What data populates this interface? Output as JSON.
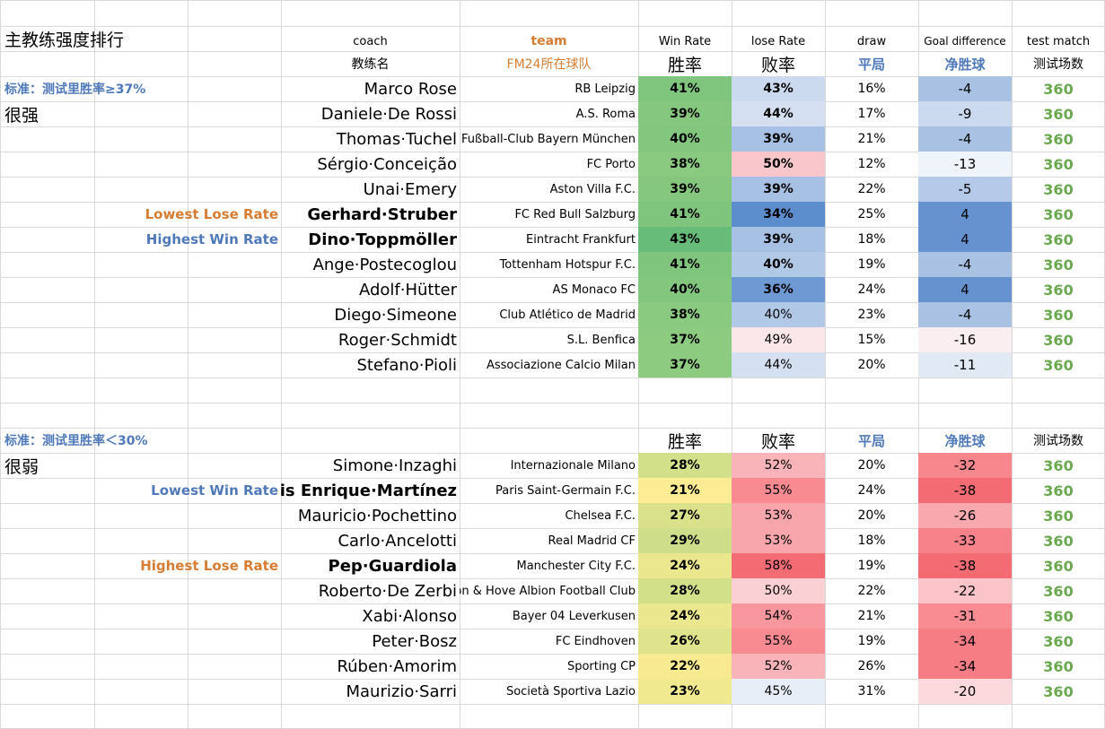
{
  "page_title": "主教练强度排行",
  "headers": {
    "coach_en": "coach",
    "team_en": "team",
    "win_en": "Win Rate",
    "lose_en": "lose Rate",
    "draw_en": "draw",
    "gd_en": "Goal difference",
    "test_en": "test match",
    "coach_cn": "教练名",
    "team_cn": "FM24所在球队",
    "win_cn": "胜率",
    "lose_cn": "败率",
    "draw_cn": "平局",
    "gd_cn": "净胜球",
    "test_cn": "测试场数"
  },
  "colors": {
    "orange": "#d67c33",
    "blue": "#4f79b8",
    "green_text": "#6aa84f"
  },
  "strong": {
    "criterion": "标准：测试里胜率≥37%",
    "label": "很强",
    "rows": [
      {
        "tag": "",
        "tag_color": "",
        "coach": "Marco Rose",
        "bold": false,
        "team": "RB Leipzig",
        "win": "41%",
        "lose": "43%",
        "draw": "16%",
        "gd": "-4",
        "test": "360",
        "win_bg": "#80c57e",
        "lose_bg": "#ccdaef",
        "gd_bg": "#a9c2e4"
      },
      {
        "tag": "",
        "tag_color": "",
        "coach": "Daniele·De Rossi",
        "bold": false,
        "team": "A.S. Roma",
        "win": "39%",
        "lose": "44%",
        "draw": "17%",
        "gd": "-9",
        "test": "360",
        "win_bg": "#86c77f",
        "lose_bg": "#d4e0f1",
        "gd_bg": "#ccdaef"
      },
      {
        "tag": "",
        "tag_color": "",
        "coach": "Thomas·Tuchel",
        "bold": false,
        "team": "Fußball-Club Bayern München",
        "win": "40%",
        "lose": "39%",
        "draw": "21%",
        "gd": "-4",
        "test": "360",
        "win_bg": "#83c67e",
        "lose_bg": "#a7c1e4",
        "gd_bg": "#a9c2e4"
      },
      {
        "tag": "",
        "tag_color": "",
        "coach": "Sérgio·Conceição",
        "bold": false,
        "team": "FC Porto",
        "win": "38%",
        "lose": "50%",
        "draw": "12%",
        "gd": "-13",
        "test": "360",
        "win_bg": "#8aca80",
        "lose_bg": "#f9c7cb",
        "gd_bg": "#eff3fa"
      },
      {
        "tag": "",
        "tag_color": "",
        "coach": "Unai·Emery",
        "bold": false,
        "team": "Aston Villa F.C.",
        "win": "39%",
        "lose": "39%",
        "draw": "22%",
        "gd": "-5",
        "test": "360",
        "win_bg": "#86c77f",
        "lose_bg": "#a7c1e4",
        "gd_bg": "#b4cae8"
      },
      {
        "tag": "Lowest Lose Rate",
        "tag_color": "#d67c33",
        "coach": "Gerhard·Struber",
        "bold": true,
        "team": "FC Red Bull Salzburg",
        "win": "41%",
        "lose": "34%",
        "draw": "25%",
        "gd": "4",
        "test": "360",
        "win_bg": "#80c57e",
        "lose_bg": "#5c8dcd",
        "gd_bg": "#6693cf"
      },
      {
        "tag": "Highest Win Rate",
        "tag_color": "#4f79b8",
        "coach": "Dino·Toppmöller",
        "bold": true,
        "team": "Eintracht Frankfurt",
        "win": "43%",
        "lose": "39%",
        "draw": "18%",
        "gd": "4",
        "test": "360",
        "win_bg": "#66bc78",
        "lose_bg": "#a7c1e4",
        "gd_bg": "#6693cf"
      },
      {
        "tag": "",
        "tag_color": "",
        "coach": "Ange·Postecoglou",
        "bold": false,
        "team": "Tottenham Hotspur F.C.",
        "win": "41%",
        "lose": "40%",
        "draw": "19%",
        "gd": "-4",
        "test": "360",
        "win_bg": "#80c57e",
        "lose_bg": "#b1c8e7",
        "gd_bg": "#a9c2e4"
      },
      {
        "tag": "",
        "tag_color": "",
        "coach": "Adolf·Hütter",
        "bold": false,
        "team": "AS Monaco FC",
        "win": "40%",
        "lose": "36%",
        "draw": "24%",
        "gd": "4",
        "test": "360",
        "win_bg": "#83c67e",
        "lose_bg": "#6f99d2",
        "gd_bg": "#6693cf"
      },
      {
        "tag": "",
        "tag_color": "",
        "coach": "Diego·Simeone",
        "bold": false,
        "team": "Club Atlético de Madrid",
        "win": "38%",
        "lose": "40%",
        "draw": "23%",
        "gd": "-4",
        "test": "360",
        "win_bg": "#8aca80",
        "lose_bg": "#b1c8e7",
        "gd_bg": "#a9c2e4"
      },
      {
        "tag": "",
        "tag_color": "",
        "coach": "Roger·Schmidt",
        "bold": false,
        "team": "S.L. Benfica",
        "win": "37%",
        "lose": "49%",
        "draw": "15%",
        "gd": "-16",
        "test": "360",
        "win_bg": "#8dcb81",
        "lose_bg": "#fbe6ea",
        "gd_bg": "#fbeef1"
      },
      {
        "tag": "",
        "tag_color": "",
        "coach": "Stefano·Pioli",
        "bold": false,
        "team": "Associazione Calcio Milan",
        "win": "37%",
        "lose": "44%",
        "draw": "20%",
        "gd": "-11",
        "test": "360",
        "win_bg": "#8dcb81",
        "lose_bg": "#d4e0f1",
        "gd_bg": "#e1e9f5"
      }
    ]
  },
  "weak": {
    "criterion": "标准：测试里胜率＜30%",
    "label": "很弱",
    "rows": [
      {
        "tag": "",
        "tag_color": "",
        "coach": "Simone·Inzaghi",
        "bold": false,
        "team": "Internazionale Milano",
        "win": "28%",
        "lose": "52%",
        "draw": "20%",
        "gd": "-32",
        "test": "360",
        "win_bg": "#d3e08a",
        "lose_bg": "#f9b4b9",
        "gd_bg": "#f7878d"
      },
      {
        "tag": "Lowest Win Rate",
        "tag_color": "#4f79b8",
        "coach": "Luis Enrique·Martínez",
        "bold": true,
        "team": "Paris Saint-Germain F.C.",
        "win": "21%",
        "lose": "55%",
        "draw": "24%",
        "gd": "-38",
        "test": "360",
        "win_bg": "#fdec93",
        "lose_bg": "#f78b91",
        "gd_bg": "#f46c73"
      },
      {
        "tag": "",
        "tag_color": "",
        "coach": "Mauricio·Pochettino",
        "bold": false,
        "team": "Chelsea F.C.",
        "win": "27%",
        "lose": "53%",
        "draw": "20%",
        "gd": "-26",
        "test": "360",
        "win_bg": "#d9e28b",
        "lose_bg": "#f8a6ab",
        "gd_bg": "#f9a9ae"
      },
      {
        "tag": "",
        "tag_color": "",
        "coach": "Carlo·Ancelotti",
        "bold": false,
        "team": "Real Madrid CF",
        "win": "29%",
        "lose": "53%",
        "draw": "18%",
        "gd": "-33",
        "test": "360",
        "win_bg": "#cddd89",
        "lose_bg": "#f8a6ab",
        "gd_bg": "#f78289"
      },
      {
        "tag": "Highest Lose Rate",
        "tag_color": "#d67c33",
        "coach": "Pep·Guardiola",
        "bold": true,
        "team": "Manchester City F.C.",
        "win": "24%",
        "lose": "58%",
        "draw": "19%",
        "gd": "-38",
        "test": "360",
        "win_bg": "#ebe78f",
        "lose_bg": "#f46c73",
        "gd_bg": "#f46c73"
      },
      {
        "tag": "",
        "tag_color": "",
        "coach": "Roberto·De Zerbi",
        "bold": false,
        "team": "Brighton & Hove Albion Football Club",
        "win": "28%",
        "lose": "50%",
        "draw": "22%",
        "gd": "-22",
        "test": "360",
        "win_bg": "#d3e08a",
        "lose_bg": "#fbd0d4",
        "gd_bg": "#fbc4c8"
      },
      {
        "tag": "",
        "tag_color": "",
        "coach": "Xabi·Alonso",
        "bold": false,
        "team": "Bayer 04 Leverkusen",
        "win": "24%",
        "lose": "54%",
        "draw": "21%",
        "gd": "-31",
        "test": "360",
        "win_bg": "#ebe78f",
        "lose_bg": "#f8989e",
        "gd_bg": "#f88c92"
      },
      {
        "tag": "",
        "tag_color": "",
        "coach": "Peter·Bosz",
        "bold": false,
        "team": "FC Eindhoven",
        "win": "26%",
        "lose": "55%",
        "draw": "19%",
        "gd": "-34",
        "test": "360",
        "win_bg": "#dfe48c",
        "lose_bg": "#f78b91",
        "gd_bg": "#f67d84"
      },
      {
        "tag": "",
        "tag_color": "",
        "coach": "Rúben·Amorim",
        "bold": false,
        "team": "Sporting CP",
        "win": "22%",
        "lose": "52%",
        "draw": "26%",
        "gd": "-34",
        "test": "360",
        "win_bg": "#f7ea91",
        "lose_bg": "#f9b4b9",
        "gd_bg": "#f67d84"
      },
      {
        "tag": "",
        "tag_color": "",
        "coach": "Maurizio·Sarri",
        "bold": false,
        "team": "Società Sportiva Lazio",
        "win": "23%",
        "lose": "45%",
        "draw": "31%",
        "gd": "-20",
        "test": "360",
        "win_bg": "#f1e990",
        "lose_bg": "#e8eef8",
        "gd_bg": "#fbd9dd"
      }
    ]
  }
}
